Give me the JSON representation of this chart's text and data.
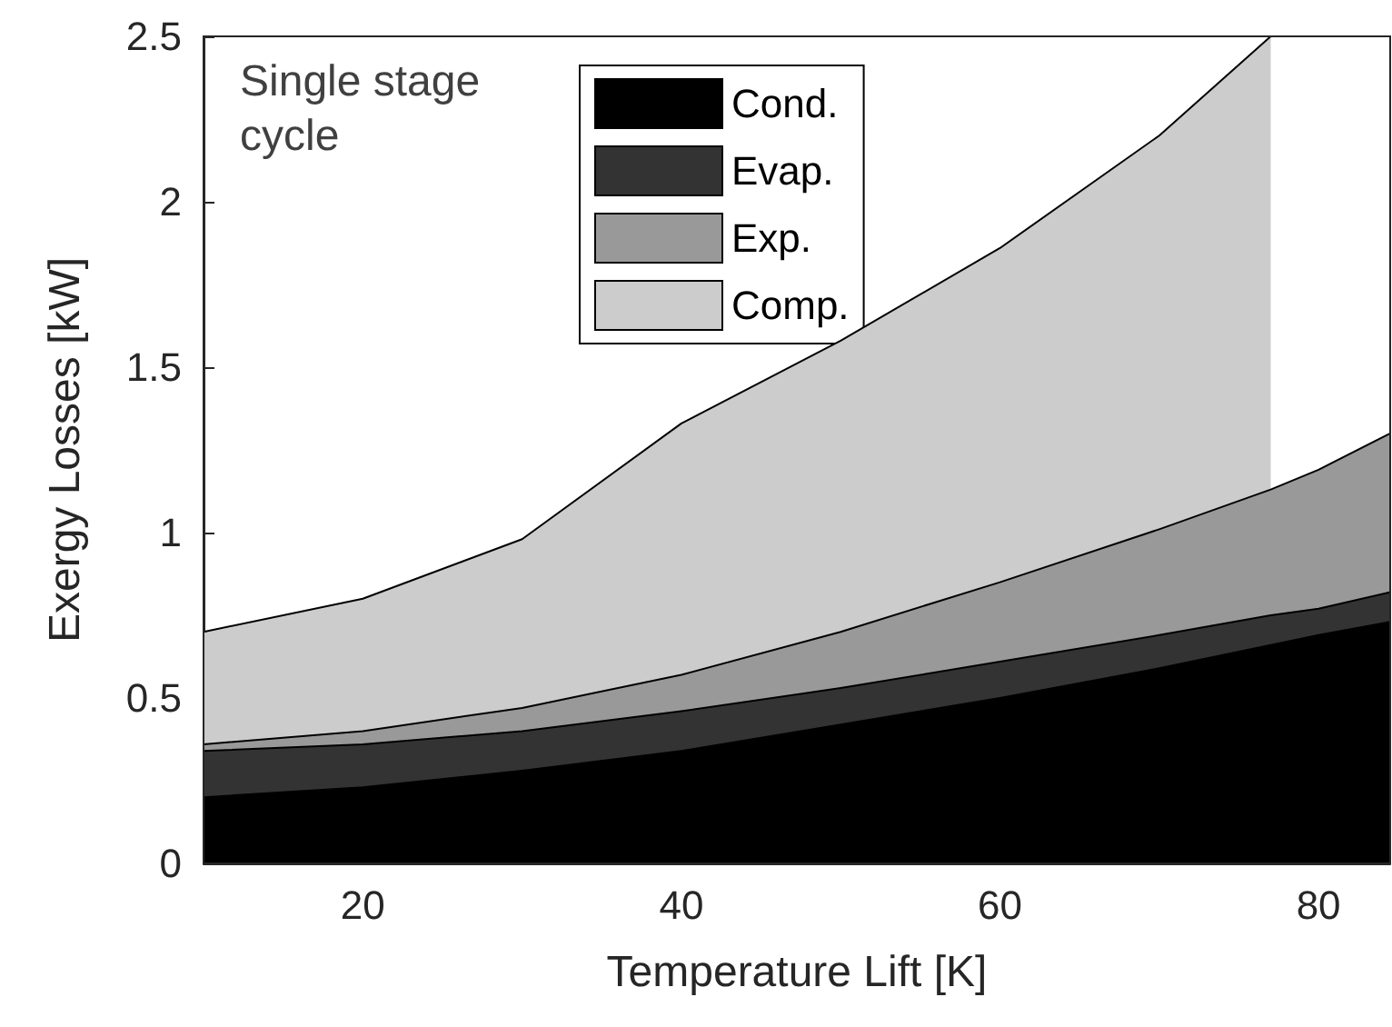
{
  "chart_data": {
    "type": "area",
    "stacked": true,
    "xlabel": "Temperature Lift [K]",
    "ylabel": "Exergy Losses [kW]",
    "annotations": [
      "Single stage cycle"
    ],
    "x": [
      10,
      20,
      30,
      40,
      50,
      60,
      70,
      77,
      80,
      84.5
    ],
    "series": [
      {
        "name": "Cond.",
        "color": "#000000",
        "values": [
          0.2,
          0.23,
          0.28,
          0.34,
          0.42,
          0.5,
          0.59,
          0.66,
          0.69,
          0.73
        ]
      },
      {
        "name": "Evap.",
        "color": "#333333",
        "values": [
          0.14,
          0.13,
          0.12,
          0.12,
          0.11,
          0.11,
          0.1,
          0.09,
          0.08,
          0.09
        ]
      },
      {
        "name": "Exp.",
        "color": "#999999",
        "values": [
          0.02,
          0.04,
          0.07,
          0.11,
          0.17,
          0.24,
          0.32,
          0.38,
          0.42,
          0.48
        ]
      },
      {
        "name": "Comp.",
        "color": "#cccccc",
        "values": [
          0.34,
          0.4,
          0.51,
          0.76,
          0.88,
          1.01,
          1.19,
          1.37,
          null,
          null
        ]
      }
    ],
    "xlim": [
      10,
      84.5
    ],
    "xticks": [
      20,
      40,
      60,
      80
    ],
    "ylim": [
      0,
      2.5
    ],
    "yticks": [
      0,
      0.5,
      1,
      1.5,
      2,
      2.5
    ],
    "grid": false,
    "legend": "top"
  }
}
